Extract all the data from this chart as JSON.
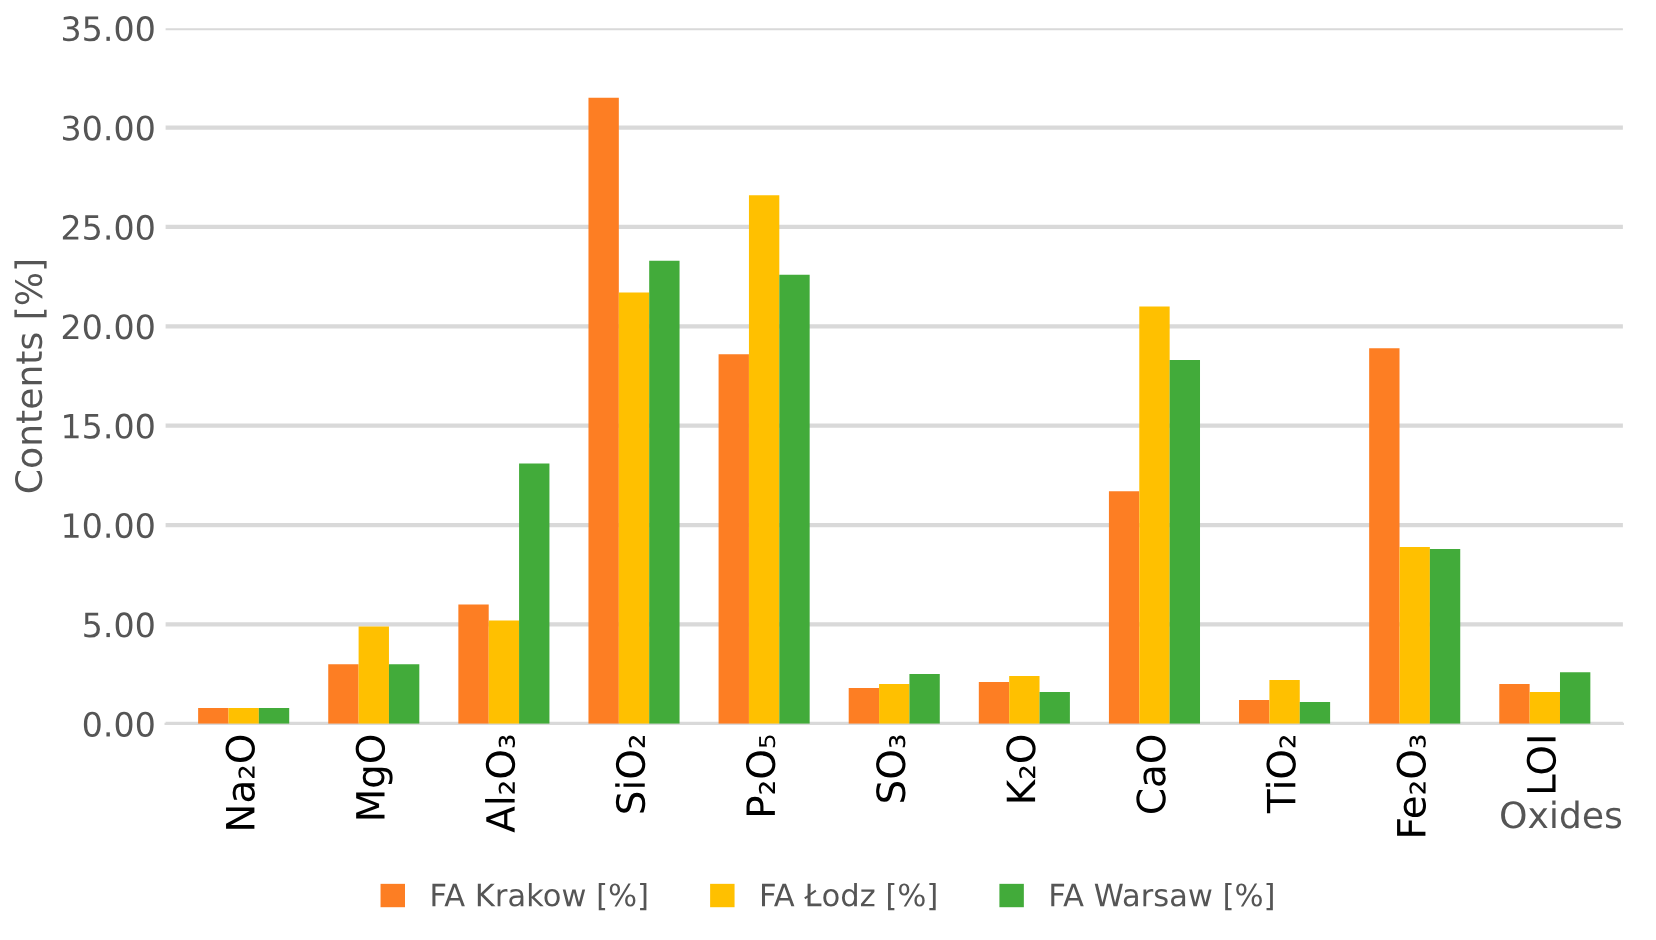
{
  "chart_data": {
    "type": "bar",
    "ylabel": "Contents [%]",
    "xlabel": "Oxides",
    "categories": [
      "Na₂O",
      "MgO",
      "Al₂O₃",
      "SiO₂",
      "P₂O₅",
      "SO₃",
      "K₂O",
      "CaO",
      "TiO₂",
      "Fe₂O₃",
      "LOI"
    ],
    "series": [
      {
        "name": "FA Krakow [%]",
        "color": "#fd7e23",
        "values": [
          0.8,
          3.0,
          6.0,
          31.5,
          18.6,
          1.8,
          2.1,
          11.7,
          1.2,
          18.9,
          2.0
        ]
      },
      {
        "name": "FA Łodz [%]",
        "color": "#ffc000",
        "values": [
          0.8,
          4.9,
          5.2,
          21.7,
          26.6,
          2.0,
          2.4,
          21.0,
          2.2,
          8.9,
          1.6
        ]
      },
      {
        "name": "FA Warsaw [%]",
        "color": "#42ab3a",
        "values": [
          0.8,
          3.0,
          13.1,
          23.3,
          22.6,
          2.5,
          1.6,
          18.3,
          1.1,
          8.8,
          2.6
        ]
      }
    ],
    "ylim": [
      0,
      35
    ],
    "yticks": [
      {
        "value": 0,
        "label": "0.00"
      },
      {
        "value": 5,
        "label": "5.00"
      },
      {
        "value": 10,
        "label": "10.00"
      },
      {
        "value": 15,
        "label": "15.00"
      },
      {
        "value": 20,
        "label": "20.00"
      },
      {
        "value": 25,
        "label": "25.00"
      },
      {
        "value": 30,
        "label": "30.00"
      },
      {
        "value": 35,
        "label": "35.00"
      }
    ],
    "grid": "y",
    "legend": "bottom"
  }
}
